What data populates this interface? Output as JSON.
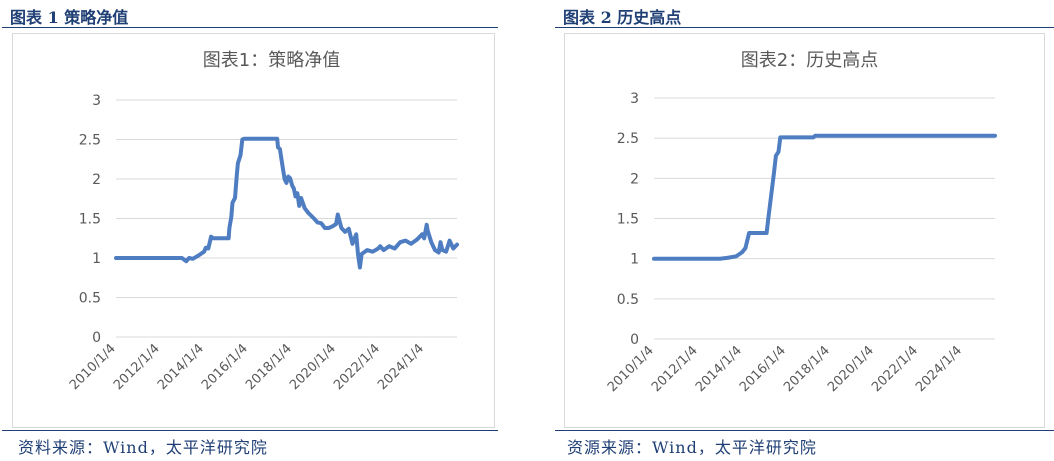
{
  "figures": [
    {
      "caption": "图表 1 策略净值",
      "source": "资料来源：Wind，太平洋研究院"
    },
    {
      "caption": "图表 2 历史高点",
      "source": "资源来源：Wind，太平洋研究院"
    }
  ],
  "colors": {
    "line": "#4f7dc1",
    "grid": "#d9d9d9",
    "axis_text": "#595959",
    "caption": "#1f3f75"
  },
  "chart_data": [
    {
      "type": "line",
      "title": "图表1：策略净值",
      "xlabel": "",
      "ylabel": "",
      "ylim": [
        0,
        3
      ],
      "yticks": [
        "0",
        "0.5",
        "1",
        "1.5",
        "2",
        "2.5",
        "3"
      ],
      "xticks": [
        "2010/1/4",
        "2012/1/4",
        "2014/1/4",
        "2016/1/4",
        "2018/1/4",
        "2020/1/4",
        "2022/1/4",
        "2024/1/4"
      ],
      "xlim": [
        "2010/1/4",
        "2025/7/1"
      ],
      "grid": true,
      "legend": "none",
      "series": [
        {
          "points": [
            [
              "2010/1/4",
              1.0
            ],
            [
              "2013/1/1",
              1.0
            ],
            [
              "2013/3/15",
              0.96
            ],
            [
              "2013/5/1",
              1.0
            ],
            [
              "2013/7/1",
              0.99
            ],
            [
              "2013/10/1",
              1.03
            ],
            [
              "2014/1/4",
              1.08
            ],
            [
              "2014/2/1",
              1.13
            ],
            [
              "2014/3/15",
              1.12
            ],
            [
              "2014/5/1",
              1.27
            ],
            [
              "2014/6/1",
              1.25
            ],
            [
              "2015/1/1",
              1.25
            ],
            [
              "2015/2/15",
              1.25
            ],
            [
              "2015/3/1",
              1.38
            ],
            [
              "2015/4/1",
              1.52
            ],
            [
              "2015/4/20",
              1.7
            ],
            [
              "2015/6/1",
              1.76
            ],
            [
              "2015/7/1",
              2.05
            ],
            [
              "2015/7/20",
              2.2
            ],
            [
              "2015/9/1",
              2.3
            ],
            [
              "2015/10/1",
              2.5
            ],
            [
              "2015/11/1",
              2.51
            ],
            [
              "2017/5/1",
              2.51
            ],
            [
              "2017/5/15",
              2.4
            ],
            [
              "2017/6/15",
              2.38
            ],
            [
              "2017/8/1",
              2.15
            ],
            [
              "2017/9/1",
              2.0
            ],
            [
              "2017/10/1",
              1.95
            ],
            [
              "2017/11/1",
              2.03
            ],
            [
              "2017/12/1",
              2.01
            ],
            [
              "2018/1/4",
              1.92
            ],
            [
              "2018/2/1",
              1.88
            ],
            [
              "2018/3/1",
              1.78
            ],
            [
              "2018/4/1",
              1.82
            ],
            [
              "2018/5/1",
              1.66
            ],
            [
              "2018/6/1",
              1.76
            ],
            [
              "2018/8/1",
              1.63
            ],
            [
              "2018/10/1",
              1.57
            ],
            [
              "2019/1/1",
              1.5
            ],
            [
              "2019/3/1",
              1.45
            ],
            [
              "2019/5/1",
              1.44
            ],
            [
              "2019/7/1",
              1.38
            ],
            [
              "2019/9/1",
              1.38
            ],
            [
              "2019/11/1",
              1.4
            ],
            [
              "2020/1/4",
              1.43
            ],
            [
              "2020/2/1",
              1.55
            ],
            [
              "2020/4/1",
              1.38
            ],
            [
              "2020/6/1",
              1.33
            ],
            [
              "2020/8/1",
              1.37
            ],
            [
              "2020/10/1",
              1.18
            ],
            [
              "2020/12/1",
              1.3
            ],
            [
              "2021/1/1",
              1.05
            ],
            [
              "2021/2/1",
              0.88
            ],
            [
              "2021/3/1",
              1.05
            ],
            [
              "2021/6/1",
              1.1
            ],
            [
              "2021/9/1",
              1.08
            ],
            [
              "2021/12/1",
              1.12
            ],
            [
              "2022/1/4",
              1.15
            ],
            [
              "2022/3/1",
              1.1
            ],
            [
              "2022/6/1",
              1.15
            ],
            [
              "2022/9/1",
              1.12
            ],
            [
              "2022/12/1",
              1.2
            ],
            [
              "2023/3/1",
              1.22
            ],
            [
              "2023/6/1",
              1.18
            ],
            [
              "2023/9/1",
              1.23
            ],
            [
              "2023/12/1",
              1.3
            ],
            [
              "2024/1/4",
              1.25
            ],
            [
              "2024/2/15",
              1.42
            ],
            [
              "2024/3/1",
              1.35
            ],
            [
              "2024/5/1",
              1.2
            ],
            [
              "2024/7/1",
              1.1
            ],
            [
              "2024/9/1",
              1.07
            ],
            [
              "2024/10/1",
              1.2
            ],
            [
              "2024/11/1",
              1.1
            ],
            [
              "2025/1/1",
              1.08
            ],
            [
              "2025/3/1",
              1.22
            ],
            [
              "2025/5/1",
              1.12
            ],
            [
              "2025/7/1",
              1.17
            ]
          ]
        }
      ]
    },
    {
      "type": "line",
      "title": "图表2：历史高点",
      "xlabel": "",
      "ylabel": "",
      "ylim": [
        0,
        3
      ],
      "yticks": [
        "0",
        "0.5",
        "1",
        "1.5",
        "2",
        "2.5",
        "3"
      ],
      "xticks": [
        "2010/1/4",
        "2012/1/4",
        "2014/1/4",
        "2016/1/4",
        "2018/1/4",
        "2020/1/4",
        "2022/1/4",
        "2024/1/4"
      ],
      "xlim": [
        "2010/1/4",
        "2025/7/1"
      ],
      "grid": true,
      "legend": "none",
      "series": [
        {
          "points": [
            [
              "2010/1/4",
              1.0
            ],
            [
              "2013/1/1",
              1.0
            ],
            [
              "2013/5/1",
              1.01
            ],
            [
              "2013/10/1",
              1.03
            ],
            [
              "2014/1/4",
              1.08
            ],
            [
              "2014/3/1",
              1.13
            ],
            [
              "2014/5/1",
              1.32
            ],
            [
              "2015/1/1",
              1.32
            ],
            [
              "2015/2/15",
              1.32
            ],
            [
              "2015/3/15",
              1.5
            ],
            [
              "2015/4/20",
              1.72
            ],
            [
              "2015/6/15",
              2.05
            ],
            [
              "2015/7/20",
              2.28
            ],
            [
              "2015/9/1",
              2.33
            ],
            [
              "2015/10/1",
              2.51
            ],
            [
              "2017/4/1",
              2.51
            ],
            [
              "2017/5/1",
              2.53
            ],
            [
              "2025/7/1",
              2.53
            ]
          ]
        }
      ]
    }
  ]
}
